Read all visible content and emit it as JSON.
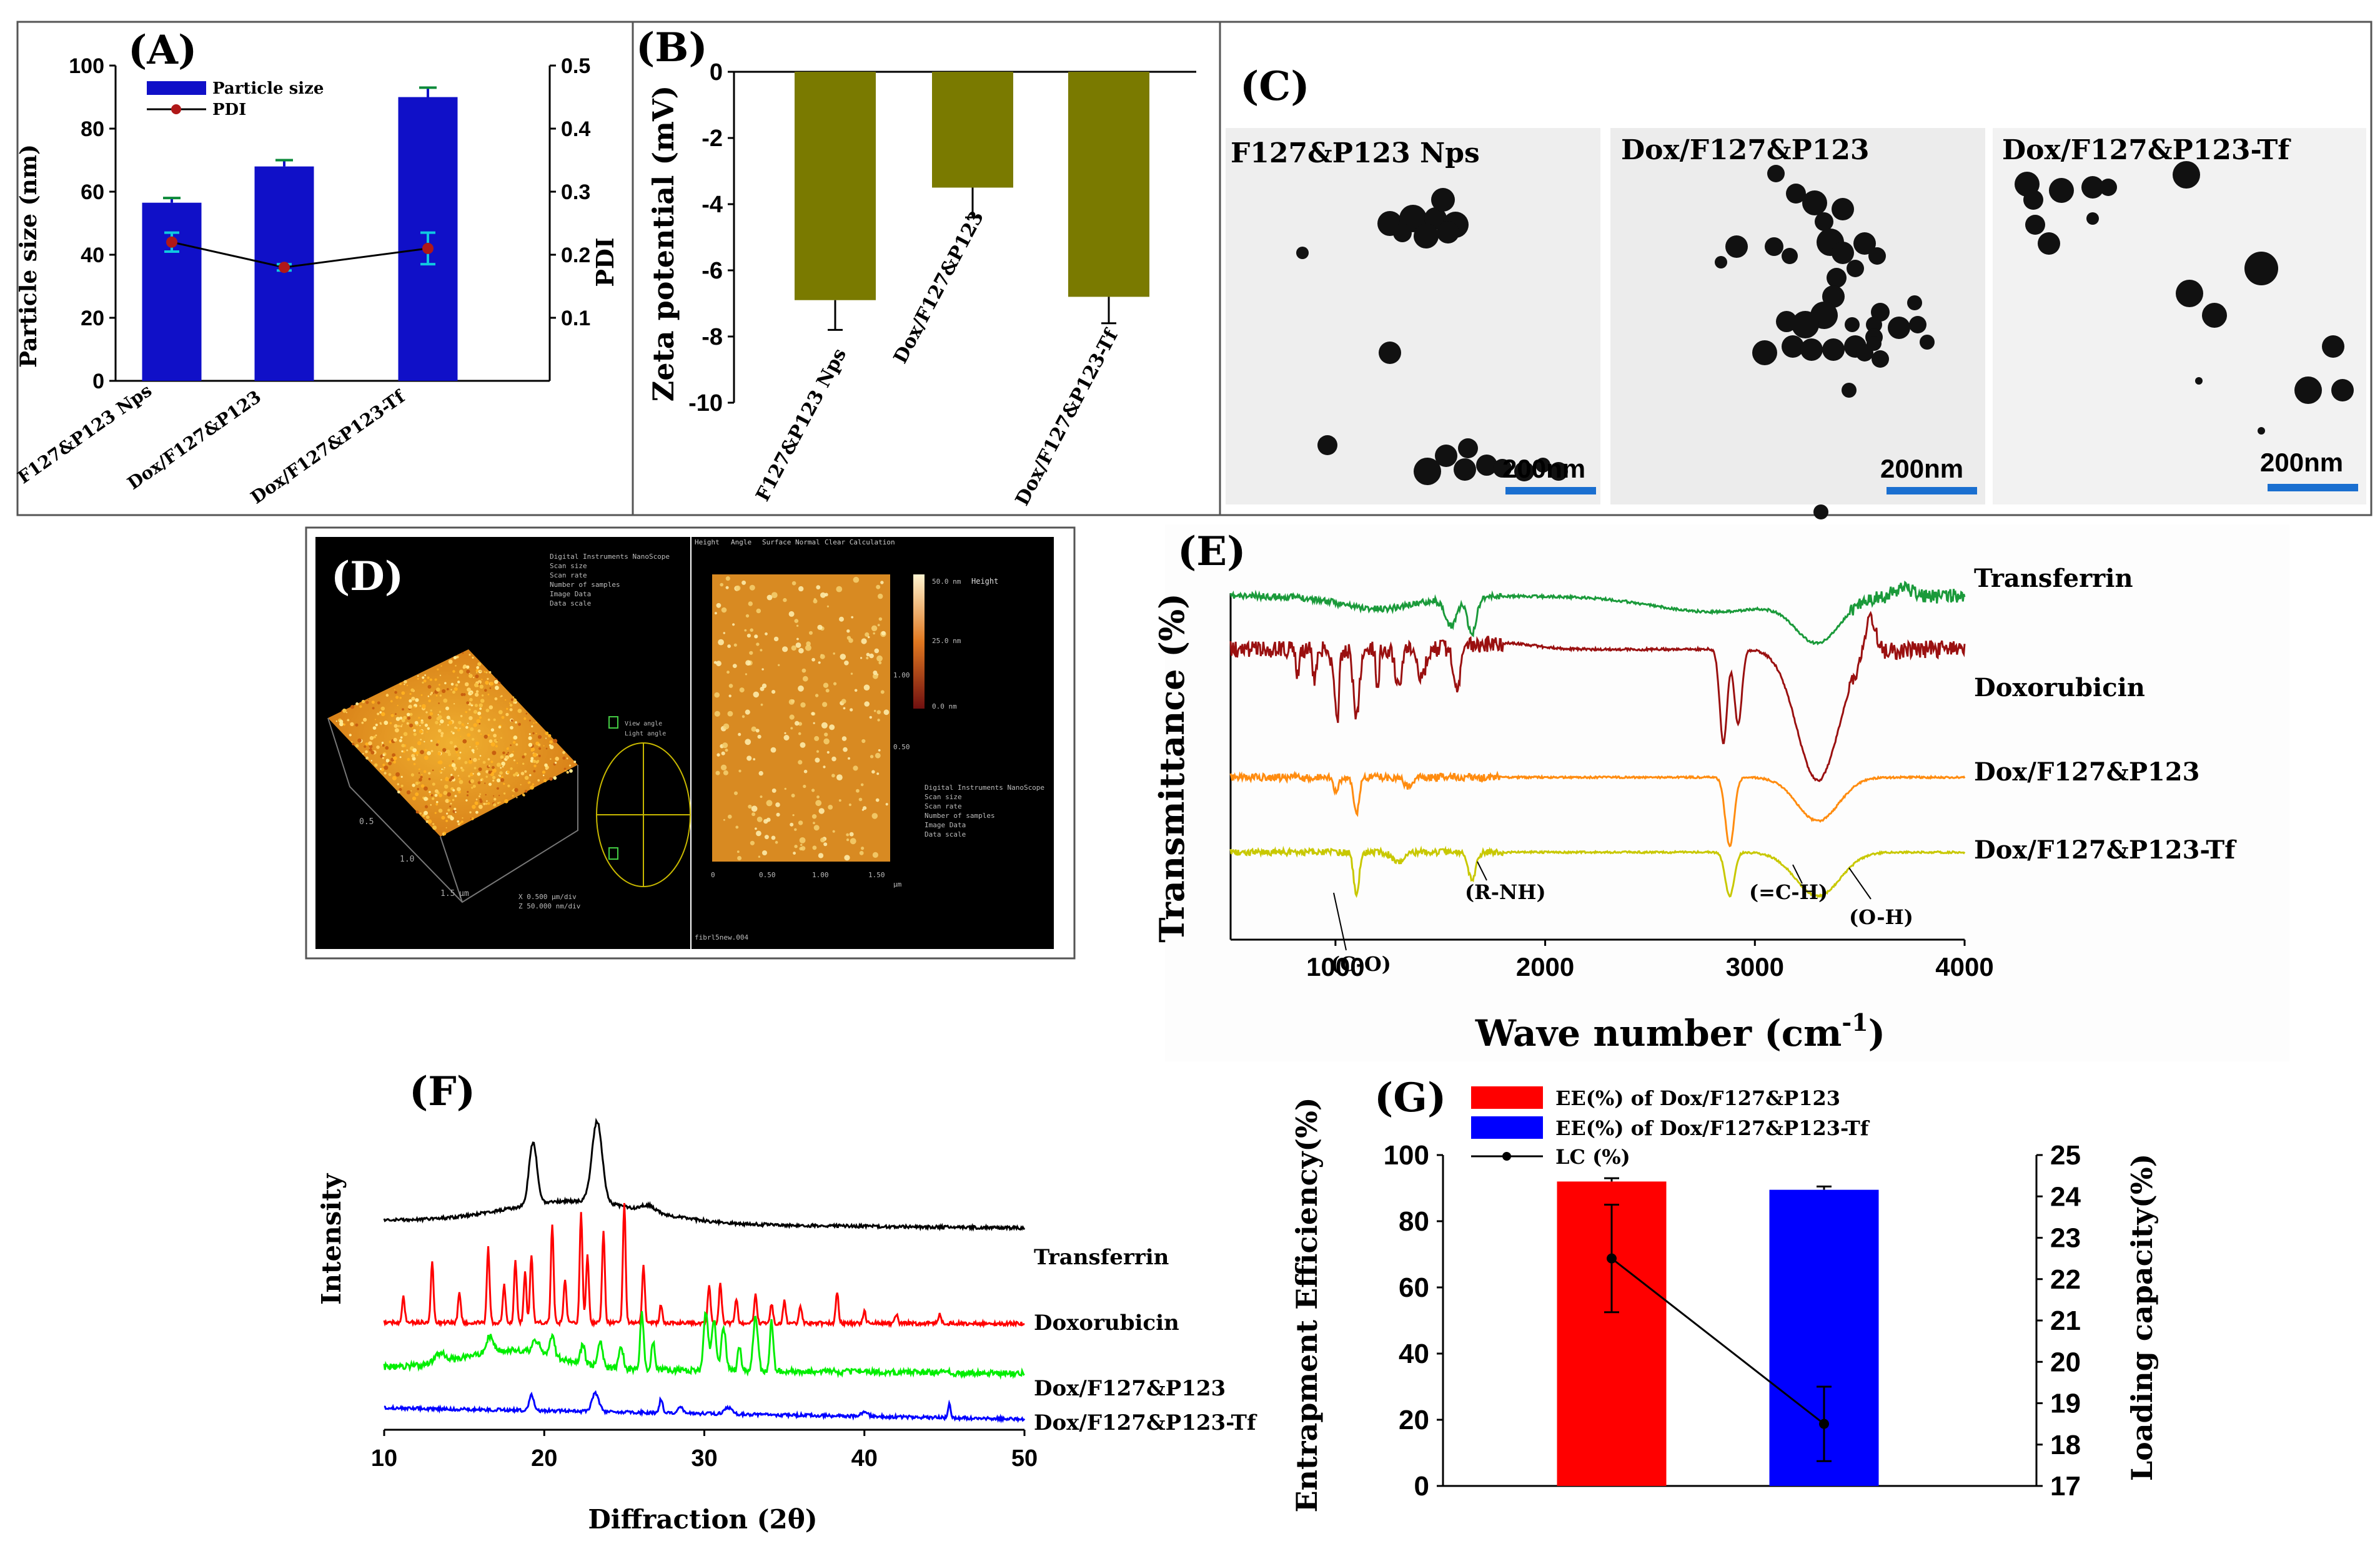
{
  "panels": {
    "a": {
      "label": "(A)",
      "title": "",
      "ylabel": "Particle size (nm)",
      "y2label": "PDI",
      "categories": [
        "F127&P123 Nps",
        "Dox/F127&P123",
        "Dox/F127&P123-Tf"
      ],
      "size_values": [
        56.5,
        68,
        90
      ],
      "size_errors": [
        1.5,
        2,
        3
      ],
      "pdi_values": [
        0.22,
        0.18,
        0.21
      ],
      "pdi_errors": [
        0.015,
        0.005,
        0.025
      ],
      "yticks": [
        "0",
        "20",
        "40",
        "60",
        "80",
        "100"
      ],
      "y2ticks": [
        "0.1",
        "0.2",
        "0.3",
        "0.4",
        "0.5"
      ],
      "legend_size": "Particle size",
      "legend_pdi": "PDI"
    },
    "b": {
      "label": "(B)",
      "ylabel": "Zeta potential (mV)",
      "categories": [
        "F127&P123 Nps",
        "Dox/F127&P123",
        "Dox/F127&P123-Tf"
      ],
      "values": [
        -6.9,
        -3.5,
        -6.8
      ],
      "errors": [
        0.9,
        0.9,
        0.8
      ],
      "yticks": [
        "0",
        "-2",
        "-4",
        "-6",
        "-8",
        "-10"
      ]
    },
    "c": {
      "label": "(C)",
      "images": [
        "F127&P123 Nps",
        "Dox/F127&P123",
        "Dox/F127&P123-Tf"
      ],
      "scale": "200nm"
    },
    "d": {
      "label": "(D)",
      "axis_marks": [
        "0.5",
        "1.0",
        "1.5",
        "µm"
      ],
      "afm_x_ticks": [
        "0",
        "0.50",
        "1.00",
        "1.50",
        "µm"
      ],
      "afm_y_ticks": [
        "0.50",
        "1.00"
      ],
      "color_scale": [
        "50.0 nm",
        "25.0 nm",
        "0.0 nm"
      ],
      "height_label": "Height",
      "view_labels": [
        "View angle",
        "Light angle"
      ],
      "header_text": [
        "Height",
        "Angle",
        "Surface Normal",
        "Clear Calculation"
      ],
      "info_left": [
        "Digital Instruments NanoScope",
        "Scan size",
        "Scan rate",
        "Number of samples",
        "Image Data",
        "Data scale"
      ],
      "info_right": [
        "Digital Instruments NanoScope",
        "Scan size",
        "Scan rate",
        "Number of samples",
        "Image Data",
        "Data scale"
      ],
      "coords": [
        "X  0.500 µm/div",
        "Z  50.000 nm/div"
      ],
      "footer": "fibrl5new.004"
    },
    "e": {
      "label": "(E)",
      "ylabel": "Transmittance (%)",
      "xlabel": "Wave number (cm",
      "xlabel_sup": "-1",
      "xlabel_end": ")",
      "xticks": [
        "1000",
        "2000",
        "3000",
        "4000"
      ],
      "series": [
        "Transferrin",
        "Doxorubicin",
        "Dox/F127&P123",
        "Dox/F127&P123-Tf"
      ],
      "annotations": [
        "(C-O)",
        "(R-NH)",
        "(=C-H)",
        "(O-H)"
      ]
    },
    "f": {
      "label": "(F)",
      "ylabel": "Intensity",
      "xlabel": "Diffraction (2θ)",
      "xticks": [
        "10",
        "20",
        "30",
        "40",
        "50"
      ],
      "series": [
        "Transferrin",
        "Doxorubicin",
        "Dox/F127&P123",
        "Dox/F127&P123-Tf"
      ]
    },
    "g": {
      "label": "(G)",
      "ylabel": "Entrapment Efficiency(%)",
      "y2label": "Loading capacity(%)",
      "legend": [
        "EE(%) of Dox/F127&P123",
        "EE(%) of Dox/F127&P123-Tf",
        "LC (%)"
      ],
      "yticks": [
        "0",
        "20",
        "40",
        "60",
        "80",
        "100"
      ],
      "y2ticks": [
        "17",
        "18",
        "19",
        "20",
        "21",
        "22",
        "23",
        "24",
        "25"
      ]
    }
  },
  "colors": {
    "blue_bar": "#1010c8",
    "olive_bar": "#7a7a00",
    "ir_transferrin": "#1a9a3a",
    "ir_dox": "#9a1010",
    "ir_dox_f127": "#ff8c10",
    "ir_dox_tf": "#c8c800",
    "xrd_transferrin": "#000000",
    "xrd_dox": "#ff0000",
    "xrd_dox_f127": "#00ee00",
    "xrd_dox_tf": "#0000ff",
    "ee_red": "#ff0000",
    "ee_blue": "#0000ff"
  },
  "chart_data": [
    {
      "type": "bar",
      "panel": "A",
      "categories": [
        "F127&P123 Nps",
        "Dox/F127&P123",
        "Dox/F127&P123-Tf"
      ],
      "series": [
        {
          "name": "Particle size",
          "values": [
            56.5,
            68,
            90
          ],
          "errors": [
            1.5,
            2,
            3
          ],
          "axis": "left"
        },
        {
          "name": "PDI",
          "values": [
            0.22,
            0.18,
            0.21
          ],
          "errors": [
            0.015,
            0.005,
            0.025
          ],
          "axis": "right",
          "kind": "line"
        }
      ],
      "ylabel": "Particle size (nm)",
      "y2label": "PDI",
      "ylim": [
        0,
        100
      ],
      "y2lim": [
        0,
        0.5
      ]
    },
    {
      "type": "bar",
      "panel": "B",
      "categories": [
        "F127&P123 Nps",
        "Dox/F127&P123",
        "Dox/F127&P123-Tf"
      ],
      "values": [
        -6.9,
        -3.5,
        -6.8
      ],
      "errors": [
        0.9,
        0.9,
        0.8
      ],
      "ylabel": "Zeta potential (mV)",
      "ylim": [
        -10,
        0
      ]
    },
    {
      "type": "line",
      "panel": "E",
      "xlabel": "Wave number (cm-1)",
      "ylabel": "Transmittance (%)",
      "xlim": [
        500,
        4000
      ],
      "series": [
        {
          "name": "Transferrin",
          "peaks_cm1": [
            1550,
            1650,
            3300
          ]
        },
        {
          "name": "Doxorubicin",
          "peaks_cm1": [
            1000,
            1100,
            1300,
            1600,
            2850,
            3300
          ]
        },
        {
          "name": "Dox/F127&P123",
          "peaks_cm1": [
            1100,
            2880,
            3300
          ]
        },
        {
          "name": "Dox/F127&P123-Tf",
          "peaks_cm1": [
            1100,
            1650,
            2880,
            3300
          ]
        }
      ]
    },
    {
      "type": "line",
      "panel": "F",
      "xlabel": "Diffraction (2θ)",
      "ylabel": "Intensity",
      "xlim": [
        10,
        50
      ],
      "series": [
        {
          "name": "Transferrin",
          "peaks_2theta": [
            19.3,
            23.3
          ]
        },
        {
          "name": "Doxorubicin",
          "peaks_2theta": [
            13,
            16.5,
            19.2,
            20.5,
            22.3,
            23.7,
            25,
            26.2,
            30.3,
            31,
            38.3
          ]
        },
        {
          "name": "Dox/F127&P123",
          "peaks_2theta": [
            26.1,
            30.1,
            31,
            33.2,
            34.2
          ]
        },
        {
          "name": "Dox/F127&P123-Tf",
          "peaks_2theta": [
            19.2,
            23.2,
            27.3,
            45.3
          ]
        }
      ]
    },
    {
      "type": "bar",
      "panel": "G",
      "categories": [
        "Dox/F127&P123",
        "Dox/F127&P123-Tf"
      ],
      "series": [
        {
          "name": "EE(%)",
          "values": [
            92,
            89.5
          ],
          "errors": [
            1,
            1
          ],
          "axis": "left"
        },
        {
          "name": "LC (%)",
          "values": [
            22.5,
            18.5
          ],
          "errors": [
            1.3,
            0.9
          ],
          "axis": "right",
          "kind": "line"
        }
      ],
      "ylabel": "Entrapment Efficiency(%)",
      "y2label": "Loading capacity(%)",
      "ylim": [
        0,
        100
      ],
      "y2lim": [
        17,
        25
      ]
    }
  ]
}
